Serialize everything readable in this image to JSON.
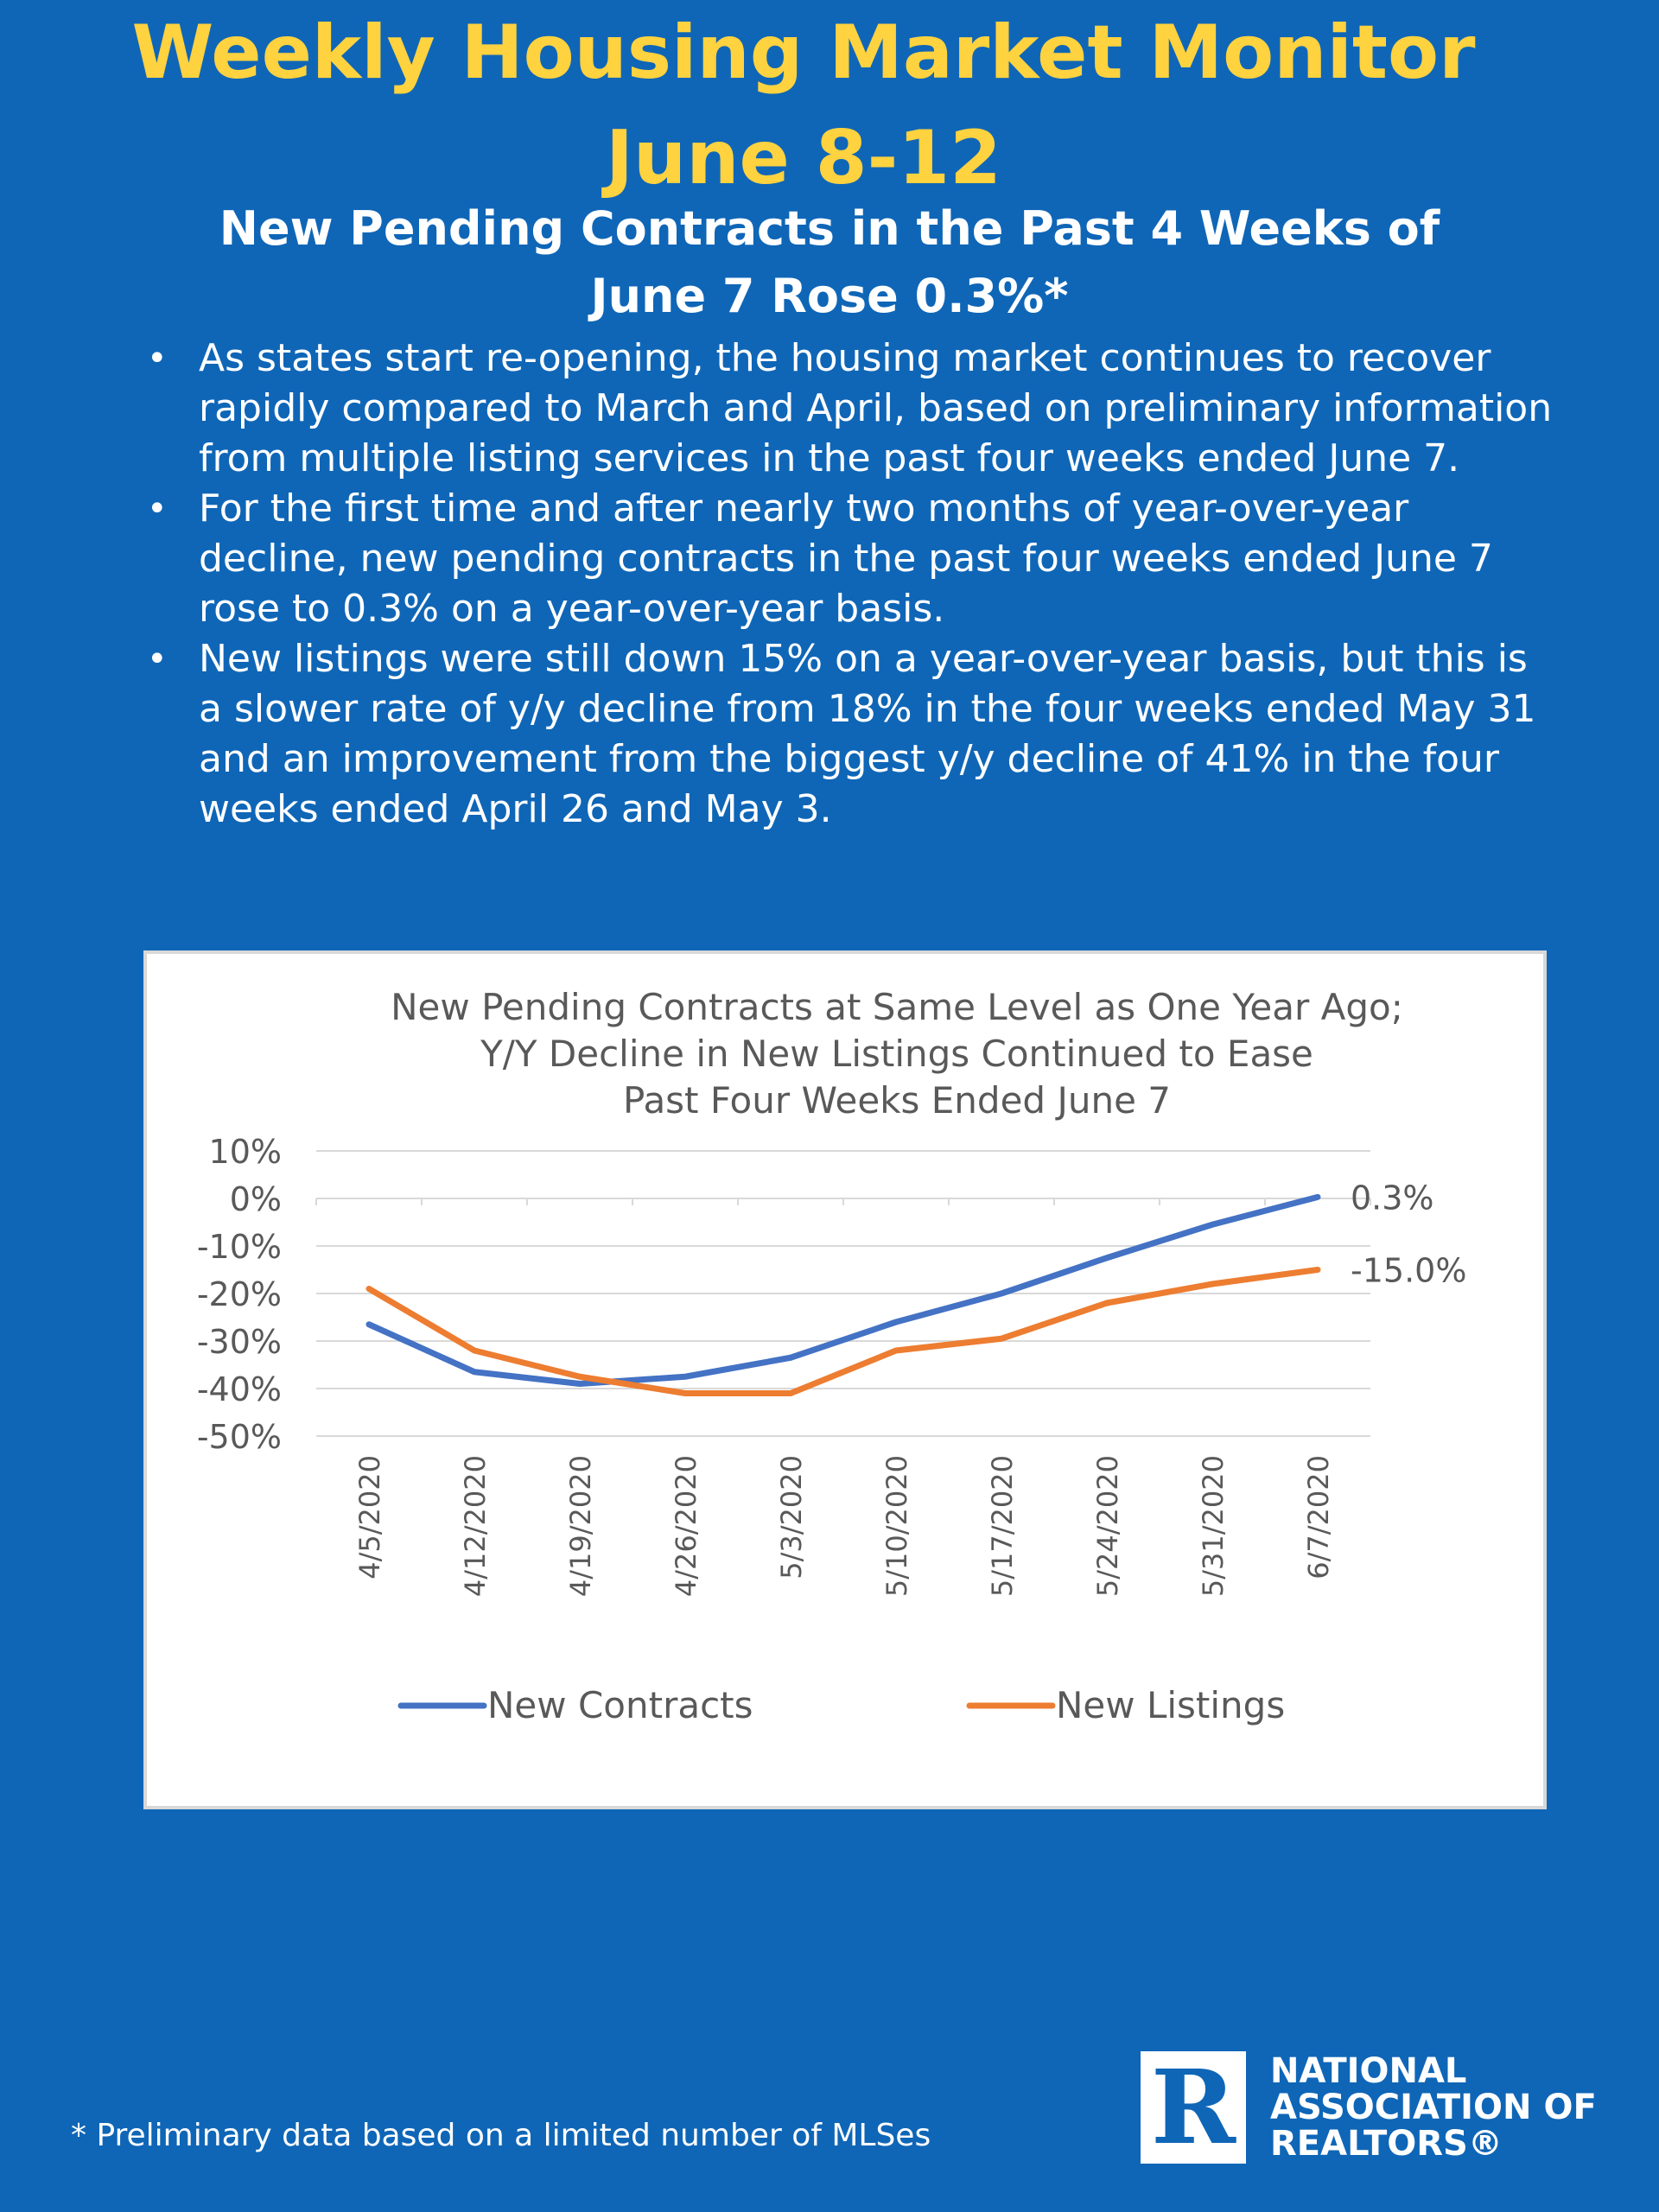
{
  "header": {
    "title_line1": "Weekly Housing Market Monitor",
    "title_line2": "June 8-12",
    "subtitle_line1": "New Pending Contracts in the Past 4 Weeks of",
    "subtitle_line2": "June 7 Rose 0.3%*"
  },
  "bullets": [
    "As states start re-opening, the housing market continues to recover rapidly compared to March and April, based on preliminary information from multiple listing services in the past four weeks ended June 7.",
    "For the first time and after nearly two months of year-over-year decline, new pending contracts in the past four weeks ended June 7 rose to 0.3% on a year-over-year basis.",
    "New listings were still down 15% on a year-over-year basis, but this is a slower rate of y/y decline from 18% in the four weeks ended May 31 and an improvement from the biggest y/y decline of 41% in the four weeks ended April 26 and May 3."
  ],
  "bullet_symbol": "•",
  "chart_data": {
    "type": "line",
    "title": "New Pending Contracts at Same Level as One Year Ago;\nY/Y Decline in New Listings Continued to Ease\nPast Four Weeks Ended June 7",
    "categories": [
      "4/5/2020",
      "4/12/2020",
      "4/19/2020",
      "4/26/2020",
      "5/3/2020",
      "5/10/2020",
      "5/17/2020",
      "5/24/2020",
      "5/31/2020",
      "6/7/2020"
    ],
    "series": [
      {
        "name": "New Contracts",
        "color": "#4472c4",
        "values": [
          -26.5,
          -36.5,
          -39.0,
          -37.5,
          -33.5,
          -26.0,
          -20.0,
          -12.5,
          -5.5,
          0.3
        ],
        "end_label": "0.3%"
      },
      {
        "name": "New Listings",
        "color": "#ed7d31",
        "values": [
          -19.0,
          -32.0,
          -37.5,
          -41.0,
          -41.0,
          -32.0,
          -29.5,
          -22.0,
          -18.0,
          -15.0
        ],
        "end_label": "-15.0%"
      }
    ],
    "ylim": [
      -50,
      10
    ],
    "yticks": [
      "10%",
      "0%",
      "-10%",
      "-20%",
      "-30%",
      "-40%",
      "-50%"
    ],
    "grid": true,
    "legend": "bottom",
    "text_color": "#595959",
    "grid_color": "#d9d9d9"
  },
  "footnote": "* Preliminary data based on a limited number of MLSes",
  "logo": {
    "org_line1": "NATIONAL",
    "org_line2": "ASSOCIATION OF",
    "org_line3": "REALTORS®"
  },
  "colors": {
    "background": "#0f66b7",
    "title": "#ffd23f",
    "text": "#ffffff"
  }
}
